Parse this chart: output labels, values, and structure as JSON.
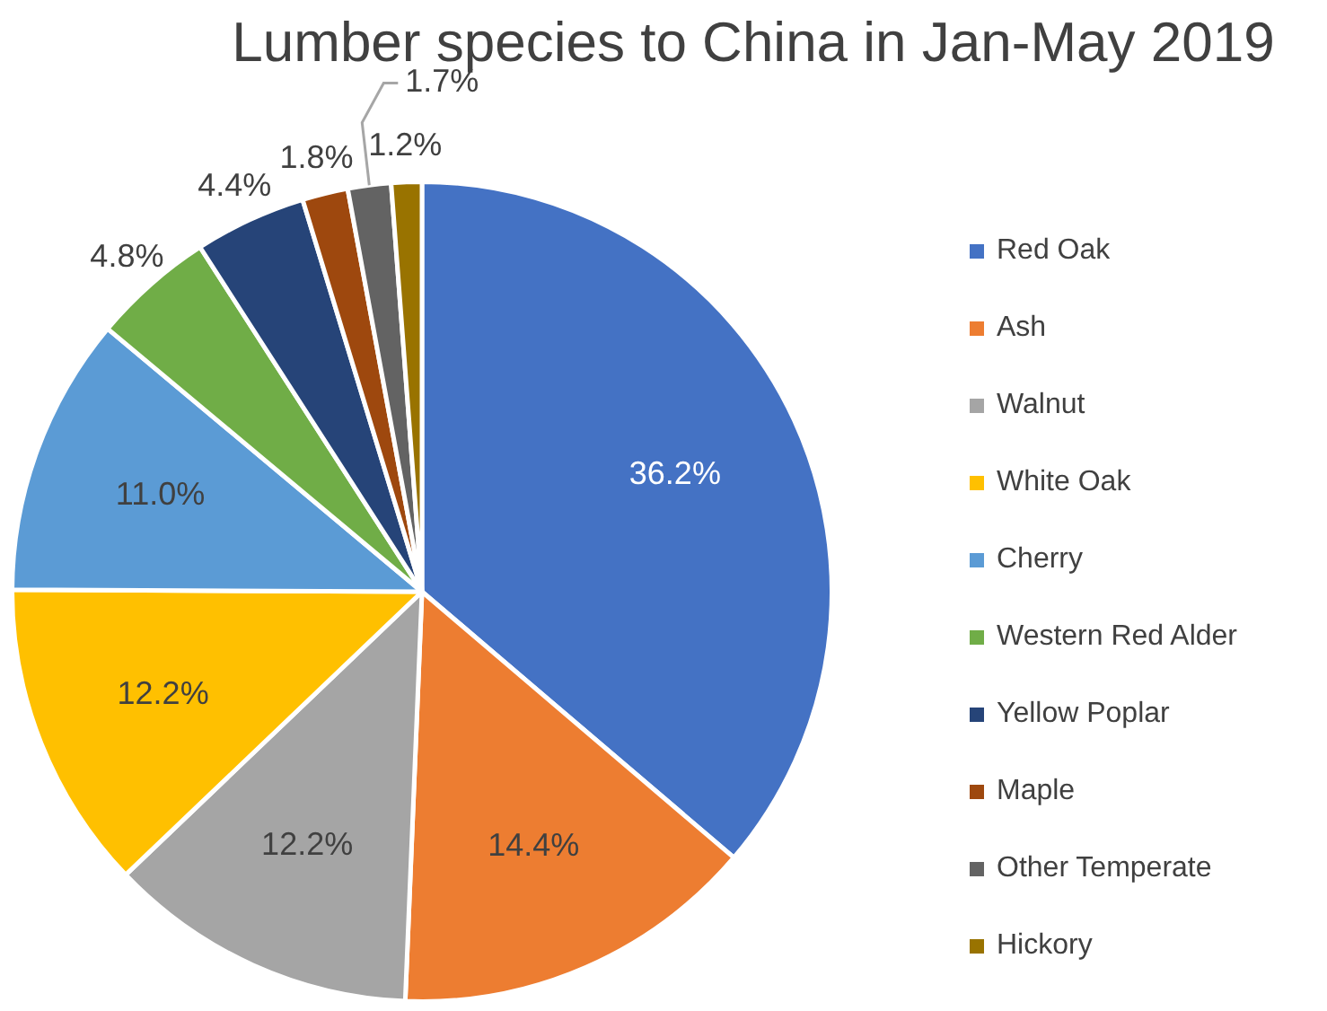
{
  "chart_data": {
    "type": "pie",
    "title": "Lumber species to China in Jan-May 2019",
    "categories": [
      "Red Oak",
      "Ash",
      "Walnut",
      "White Oak",
      "Cherry",
      "Western Red Alder",
      "Yellow Poplar",
      "Maple",
      "Other Temperate",
      "Hickory"
    ],
    "values": [
      36.2,
      14.4,
      12.2,
      12.2,
      11.0,
      4.8,
      4.4,
      1.8,
      1.7,
      1.2
    ],
    "colors": [
      "#4472c4",
      "#ed7d31",
      "#a5a5a5",
      "#ffc000",
      "#5b9bd5",
      "#70ad47",
      "#264478",
      "#9e480e",
      "#636363",
      "#997300"
    ],
    "value_labels": [
      "36.2%",
      "14.4%",
      "12.2%",
      "12.2%",
      "11.0%",
      "4.8%",
      "4.4%",
      "1.8%",
      "1.7%",
      "1.2%"
    ],
    "legend": "right"
  }
}
